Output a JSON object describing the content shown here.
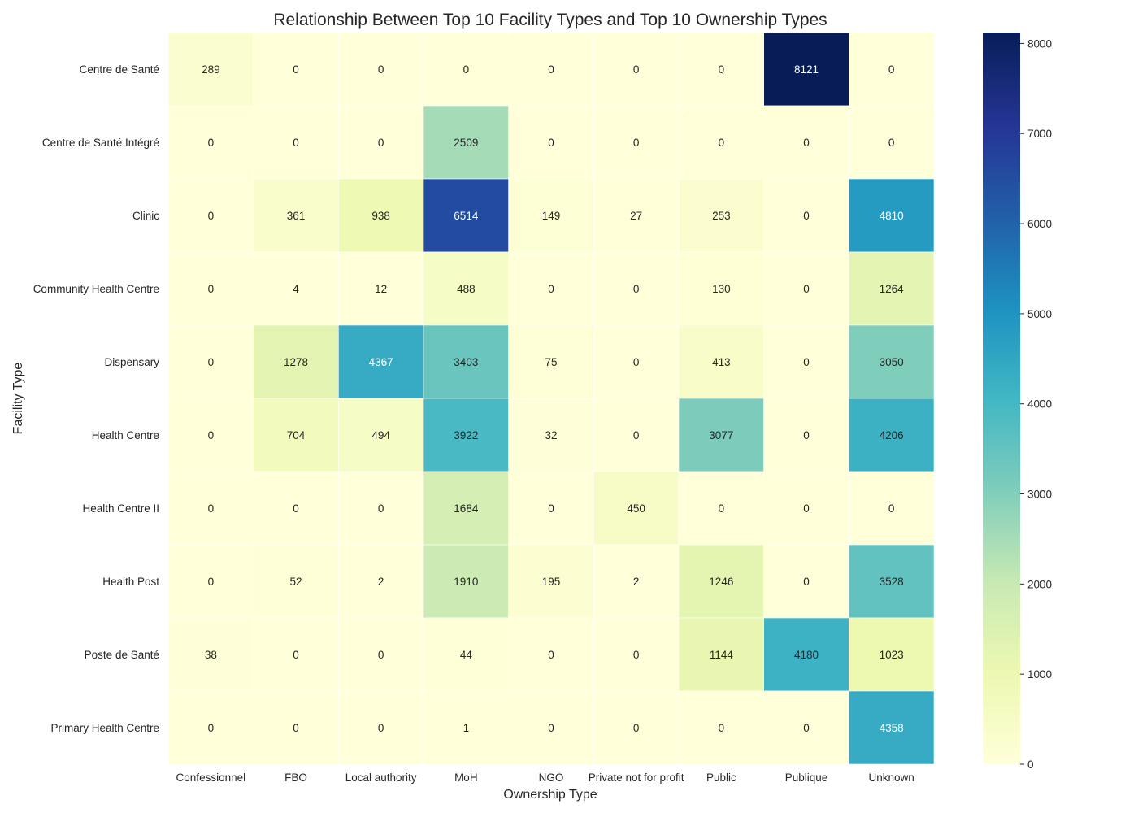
{
  "chart_data": {
    "type": "heatmap",
    "title": "Relationship Between Top 10 Facility Types and Top 10 Ownership Types",
    "xlabel": "Ownership Type",
    "ylabel": "Facility Type",
    "x_categories": [
      "Confessionnel",
      "FBO",
      "Local authority",
      "MoH",
      "NGO",
      "Private not for profit",
      "Public",
      "Publique",
      "Unknown"
    ],
    "y_categories": [
      "Centre de Santé",
      "Centre de Santé Intégré",
      "Clinic",
      "Community Health Centre",
      "Dispensary",
      "Health Centre",
      "Health Centre II",
      "Health Post",
      "Poste de Santé",
      "Primary Health Centre"
    ],
    "values": [
      [
        289,
        0,
        0,
        0,
        0,
        0,
        0,
        8121,
        0
      ],
      [
        0,
        0,
        0,
        2509,
        0,
        0,
        0,
        0,
        0
      ],
      [
        0,
        361,
        938,
        6514,
        149,
        27,
        253,
        0,
        4810
      ],
      [
        0,
        4,
        12,
        488,
        0,
        0,
        130,
        0,
        1264
      ],
      [
        0,
        1278,
        4367,
        3403,
        75,
        0,
        413,
        0,
        3050
      ],
      [
        0,
        704,
        494,
        3922,
        32,
        0,
        3077,
        0,
        4206
      ],
      [
        0,
        0,
        0,
        1684,
        0,
        450,
        0,
        0,
        0
      ],
      [
        0,
        52,
        2,
        1910,
        195,
        2,
        1246,
        0,
        3528
      ],
      [
        38,
        0,
        0,
        44,
        0,
        0,
        1144,
        4180,
        1023
      ],
      [
        0,
        0,
        0,
        1,
        0,
        0,
        0,
        0,
        4358
      ]
    ],
    "colormap": "YlGnBu",
    "colorbar": {
      "min": 0,
      "max": 8121,
      "ticks": [
        0,
        1000,
        2000,
        3000,
        4000,
        5000,
        6000,
        7000,
        8000
      ]
    },
    "annotations": true
  }
}
